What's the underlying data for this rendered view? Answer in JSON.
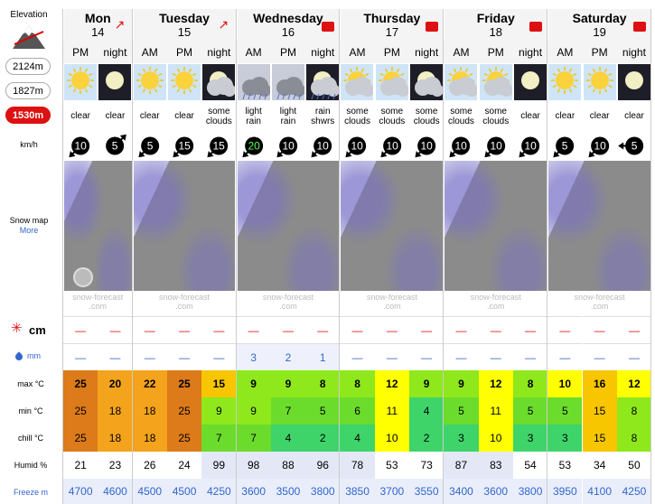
{
  "sidebar": {
    "elevation_label": "Elevation",
    "elevations": [
      "2124m",
      "1827m",
      "1530m"
    ],
    "selected_elevation": 2,
    "wind_unit": "km/h",
    "snow_map_label": "Snow map",
    "more_link": "More",
    "snow_unit": "cm",
    "rain_unit": "mm",
    "row_labels": [
      "max °C",
      "min °C",
      "chill °C",
      "Humid %",
      "Freeze m"
    ]
  },
  "watermark": [
    "snow-forecast",
    ".com"
  ],
  "days": [
    {
      "name": "Mon",
      "date": 14,
      "columns": [
        {
          "period": "PM",
          "icon": "sun",
          "summary": "clear",
          "wind": 10,
          "arrow": 225,
          "snow": "—",
          "rain": "—",
          "max": 25,
          "min": 25,
          "chill": 25,
          "humid": 21,
          "freeze": 4700
        },
        {
          "period": "night",
          "icon": "moon",
          "summary": "clear",
          "wind": 5,
          "arrow": 45,
          "snow": "—",
          "rain": "—",
          "max": 20,
          "min": 18,
          "chill": 18,
          "humid": 23,
          "freeze": 4600
        }
      ]
    },
    {
      "name": "Tuesday",
      "date": 15,
      "columns": [
        {
          "period": "AM",
          "icon": "sun",
          "summary": "clear",
          "wind": 5,
          "arrow": 225,
          "snow": "—",
          "rain": "—",
          "max": 22,
          "min": 18,
          "chill": 18,
          "humid": 26,
          "freeze": 4500
        },
        {
          "period": "PM",
          "icon": "sun",
          "summary": "clear",
          "wind": 15,
          "arrow": 225,
          "snow": "—",
          "rain": "—",
          "max": 25,
          "min": 25,
          "chill": 25,
          "humid": 24,
          "freeze": 4500
        },
        {
          "period": "night",
          "icon": "moon-cloud",
          "summary": "some clouds",
          "wind": 15,
          "arrow": 225,
          "snow": "—",
          "rain": "—",
          "max": 15,
          "min": 9,
          "chill": 7,
          "humid": 99,
          "freeze": 4250
        }
      ]
    },
    {
      "name": "Wednesday",
      "date": 16,
      "columns": [
        {
          "period": "AM",
          "icon": "rain",
          "summary": "light rain",
          "wind": 20,
          "arrow": 225,
          "snow": "—",
          "rain": 3,
          "max": 9,
          "min": 9,
          "chill": 7,
          "humid": 98,
          "freeze": 3600
        },
        {
          "period": "PM",
          "icon": "rain",
          "summary": "light rain",
          "wind": 10,
          "arrow": 225,
          "snow": "—",
          "rain": 2,
          "max": 9,
          "min": 7,
          "chill": 4,
          "humid": 88,
          "freeze": 3500
        },
        {
          "period": "night",
          "icon": "moon-rain",
          "summary": "rain shwrs",
          "wind": 10,
          "arrow": 225,
          "snow": "—",
          "rain": 1,
          "max": 8,
          "min": 5,
          "chill": 2,
          "humid": 96,
          "freeze": 3800
        }
      ]
    },
    {
      "name": "Thursday",
      "date": 17,
      "columns": [
        {
          "period": "AM",
          "icon": "sun-cloud",
          "summary": "some clouds",
          "wind": 10,
          "arrow": 225,
          "snow": "—",
          "rain": "—",
          "max": 8,
          "min": 6,
          "chill": 4,
          "humid": 78,
          "freeze": 3850
        },
        {
          "period": "PM",
          "icon": "sun-cloud",
          "summary": "some clouds",
          "wind": 10,
          "arrow": 225,
          "snow": "—",
          "rain": "—",
          "max": 12,
          "min": 11,
          "chill": 10,
          "humid": 53,
          "freeze": 3700
        },
        {
          "period": "night",
          "icon": "moon-cloud",
          "summary": "some clouds",
          "wind": 10,
          "arrow": 225,
          "snow": "—",
          "rain": "—",
          "max": 9,
          "min": 4,
          "chill": 2,
          "humid": 73,
          "freeze": 3550
        }
      ]
    },
    {
      "name": "Friday",
      "date": 18,
      "columns": [
        {
          "period": "AM",
          "icon": "sun-cloud",
          "summary": "some clouds",
          "wind": 10,
          "arrow": 225,
          "snow": "—",
          "rain": "—",
          "max": 9,
          "min": 5,
          "chill": 3,
          "humid": 87,
          "freeze": 3400
        },
        {
          "period": "PM",
          "icon": "sun-cloud",
          "summary": "some clouds",
          "wind": 10,
          "arrow": 225,
          "snow": "—",
          "rain": "—",
          "max": 12,
          "min": 11,
          "chill": 10,
          "humid": 83,
          "freeze": 3600
        },
        {
          "period": "night",
          "icon": "moon",
          "summary": "clear",
          "wind": 10,
          "arrow": 225,
          "snow": "—",
          "rain": "—",
          "max": 8,
          "min": 5,
          "chill": 3,
          "humid": 54,
          "freeze": 3800
        }
      ]
    },
    {
      "name": "Saturday",
      "date": 19,
      "columns": [
        {
          "period": "AM",
          "icon": "sun",
          "summary": "clear",
          "wind": 5,
          "arrow": 225,
          "snow": "—",
          "rain": "—",
          "max": 10,
          "min": 5,
          "chill": 3,
          "humid": 53,
          "freeze": 3950
        },
        {
          "period": "PM",
          "icon": "sun",
          "summary": "clear",
          "wind": 10,
          "arrow": 225,
          "snow": "—",
          "rain": "—",
          "max": 16,
          "min": 15,
          "chill": 15,
          "humid": 34,
          "freeze": 4100
        },
        {
          "period": "night",
          "icon": "moon",
          "summary": "clear",
          "wind": 5,
          "arrow": 270,
          "snow": "—",
          "rain": "—",
          "max": 12,
          "min": 8,
          "chill": 8,
          "humid": 50,
          "freeze": 4250
        }
      ]
    }
  ]
}
